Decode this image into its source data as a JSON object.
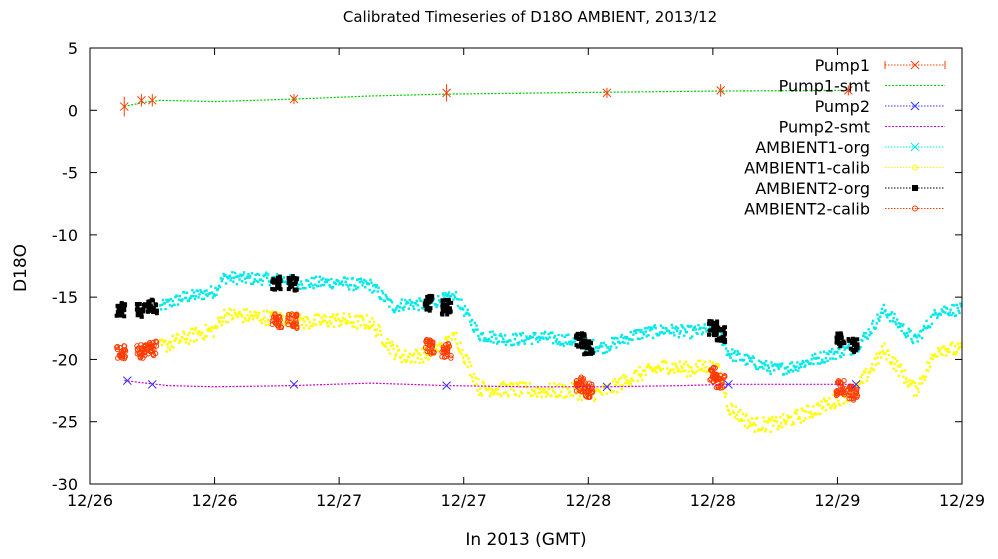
{
  "chart_data": {
    "type": "scatter",
    "title": "Calibrated Timeseries of D18O AMBIENT, 2013/12",
    "xlabel": "In 2013 (GMT)",
    "ylabel": "D18O",
    "ylim": [
      -30,
      5
    ],
    "xlim": [
      0,
      56
    ],
    "x_unit": "hours since 2013-12-26 00:00 GMT",
    "grid": false,
    "legend_position": "top-right",
    "yticks": [
      5,
      0,
      -5,
      -10,
      -15,
      -20,
      -25,
      -30
    ],
    "yticklabels": [
      "5",
      "0",
      "-5",
      "-10",
      "-15",
      "-20",
      "-25",
      "-30"
    ],
    "xticks": [
      0,
      8,
      16,
      24,
      32,
      40,
      48,
      56
    ],
    "xticklabels": [
      "12/26",
      "12/26",
      "12/27",
      "12/27",
      "12/28",
      "12/28",
      "12/29",
      "12/29"
    ],
    "series": [
      {
        "name": "Pump1",
        "style": "points",
        "marker": "x",
        "color": "#ff3c00",
        "x": [
          2.2,
          3.3,
          4.0,
          13.1,
          22.9,
          33.2,
          40.5,
          48.7
        ],
        "y": [
          0.3,
          0.8,
          0.8,
          0.9,
          1.4,
          1.4,
          1.6,
          1.6
        ],
        "err": [
          0.8,
          0.5,
          0.5,
          0.4,
          0.7,
          0.4,
          0.5,
          0.4
        ]
      },
      {
        "name": "Pump1-smt",
        "style": "line",
        "color": "#00cc00",
        "x": [
          2.2,
          3.3,
          4.5,
          8.0,
          13.1,
          18.0,
          22.9,
          33.2,
          40.5,
          48.7
        ],
        "y": [
          0.3,
          0.6,
          0.8,
          0.7,
          0.9,
          1.15,
          1.3,
          1.45,
          1.55,
          1.6
        ]
      },
      {
        "name": "Pump2",
        "style": "points",
        "marker": "x",
        "color": "#3333ff",
        "x": [
          2.4,
          4.0,
          13.1,
          22.9,
          33.2,
          41.0,
          49.2
        ],
        "y": [
          -21.7,
          -22.0,
          -22.0,
          -22.1,
          -22.2,
          -22.0,
          -22.0
        ]
      },
      {
        "name": "Pump2-smt",
        "style": "line",
        "color": "#cc00cc",
        "x": [
          2.2,
          5.0,
          8.0,
          13.0,
          18.0,
          22.9,
          28.0,
          33.2,
          38.0,
          41.0,
          45.0,
          49.2
        ],
        "y": [
          -21.7,
          -22.1,
          -22.2,
          -22.1,
          -21.9,
          -22.1,
          -22.2,
          -22.2,
          -22.1,
          -22.0,
          -22.0,
          -22.0
        ]
      },
      {
        "name": "AMBIENT1-org",
        "style": "dense",
        "color": "#00e8e8",
        "spread": 0.5,
        "x": [
          4.5,
          6.0,
          7.0,
          8.0,
          8.6,
          10.0,
          11.0,
          12.5,
          13.8,
          15.0,
          16.0,
          17.2,
          18.0,
          19.5,
          20.2,
          21.5,
          22.5,
          23.5,
          25.0,
          27.0,
          29.0,
          31.0,
          32.0,
          33.0,
          35.0,
          37.0,
          38.5,
          39.7,
          40.4,
          41.0,
          42.5,
          44.0,
          45.0,
          46.0,
          47.5,
          49.2,
          50.0,
          51.0,
          53.0,
          54.5,
          56.0
        ],
        "y": [
          -15.8,
          -15.0,
          -14.8,
          -14.5,
          -13.4,
          -13.5,
          -13.5,
          -13.6,
          -13.9,
          -13.8,
          -13.8,
          -14.0,
          -14.0,
          -15.8,
          -15.5,
          -15.6,
          -15.2,
          -15.0,
          -18.0,
          -18.4,
          -18.2,
          -18.5,
          -18.8,
          -19.0,
          -18.0,
          -17.6,
          -17.8,
          -17.6,
          -17.8,
          -19.5,
          -20.2,
          -20.8,
          -20.6,
          -20.2,
          -19.6,
          -19.0,
          -17.8,
          -16.0,
          -18.5,
          -16.0,
          -16.0
        ]
      },
      {
        "name": "AMBIENT1-calib",
        "style": "dense",
        "color": "#ffff00",
        "spread": 0.6,
        "x": [
          4.5,
          6.0,
          7.0,
          8.0,
          8.6,
          10.0,
          11.0,
          12.5,
          13.8,
          15.0,
          16.0,
          17.2,
          18.0,
          19.5,
          20.2,
          21.5,
          22.5,
          23.5,
          25.0,
          27.0,
          29.0,
          31.0,
          32.0,
          33.0,
          35.0,
          37.0,
          38.5,
          39.7,
          40.4,
          41.0,
          42.5,
          44.0,
          45.0,
          46.0,
          47.5,
          49.2,
          50.0,
          51.0,
          53.0,
          54.5,
          56.0
        ],
        "y": [
          -19.0,
          -18.3,
          -17.9,
          -17.6,
          -16.4,
          -16.5,
          -16.6,
          -16.7,
          -17.0,
          -16.9,
          -16.8,
          -17.0,
          -17.0,
          -19.3,
          -19.8,
          -19.6,
          -19.0,
          -18.2,
          -22.3,
          -22.4,
          -22.5,
          -22.5,
          -22.8,
          -22.6,
          -21.3,
          -20.5,
          -20.8,
          -20.5,
          -21.0,
          -23.8,
          -25.2,
          -25.2,
          -24.8,
          -24.3,
          -23.5,
          -22.4,
          -21.0,
          -19.2,
          -22.5,
          -19.0,
          -19.3
        ]
      },
      {
        "name": "AMBIENT2-org",
        "style": "blob",
        "marker": "square",
        "color": "#000000",
        "x": [
          2.0,
          3.3,
          4.0,
          12.0,
          13.0,
          21.8,
          22.9,
          31.5,
          32.0,
          40.0,
          40.5,
          48.2,
          49.0
        ],
        "y": [
          -16.0,
          -16.0,
          -15.8,
          -13.9,
          -13.9,
          -15.5,
          -15.8,
          -18.5,
          -19.0,
          -17.5,
          -18.0,
          -18.5,
          -18.8
        ]
      },
      {
        "name": "AMBIENT2-calib",
        "style": "blob",
        "marker": "circle",
        "color": "#ff3c00",
        "x": [
          2.0,
          3.3,
          4.0,
          12.0,
          13.0,
          21.8,
          22.9,
          31.5,
          32.0,
          40.0,
          40.5,
          48.2,
          49.0
        ],
        "y": [
          -19.4,
          -19.4,
          -19.1,
          -16.9,
          -16.9,
          -19.0,
          -19.3,
          -22.0,
          -22.5,
          -21.2,
          -21.8,
          -22.3,
          -22.7
        ]
      }
    ]
  }
}
